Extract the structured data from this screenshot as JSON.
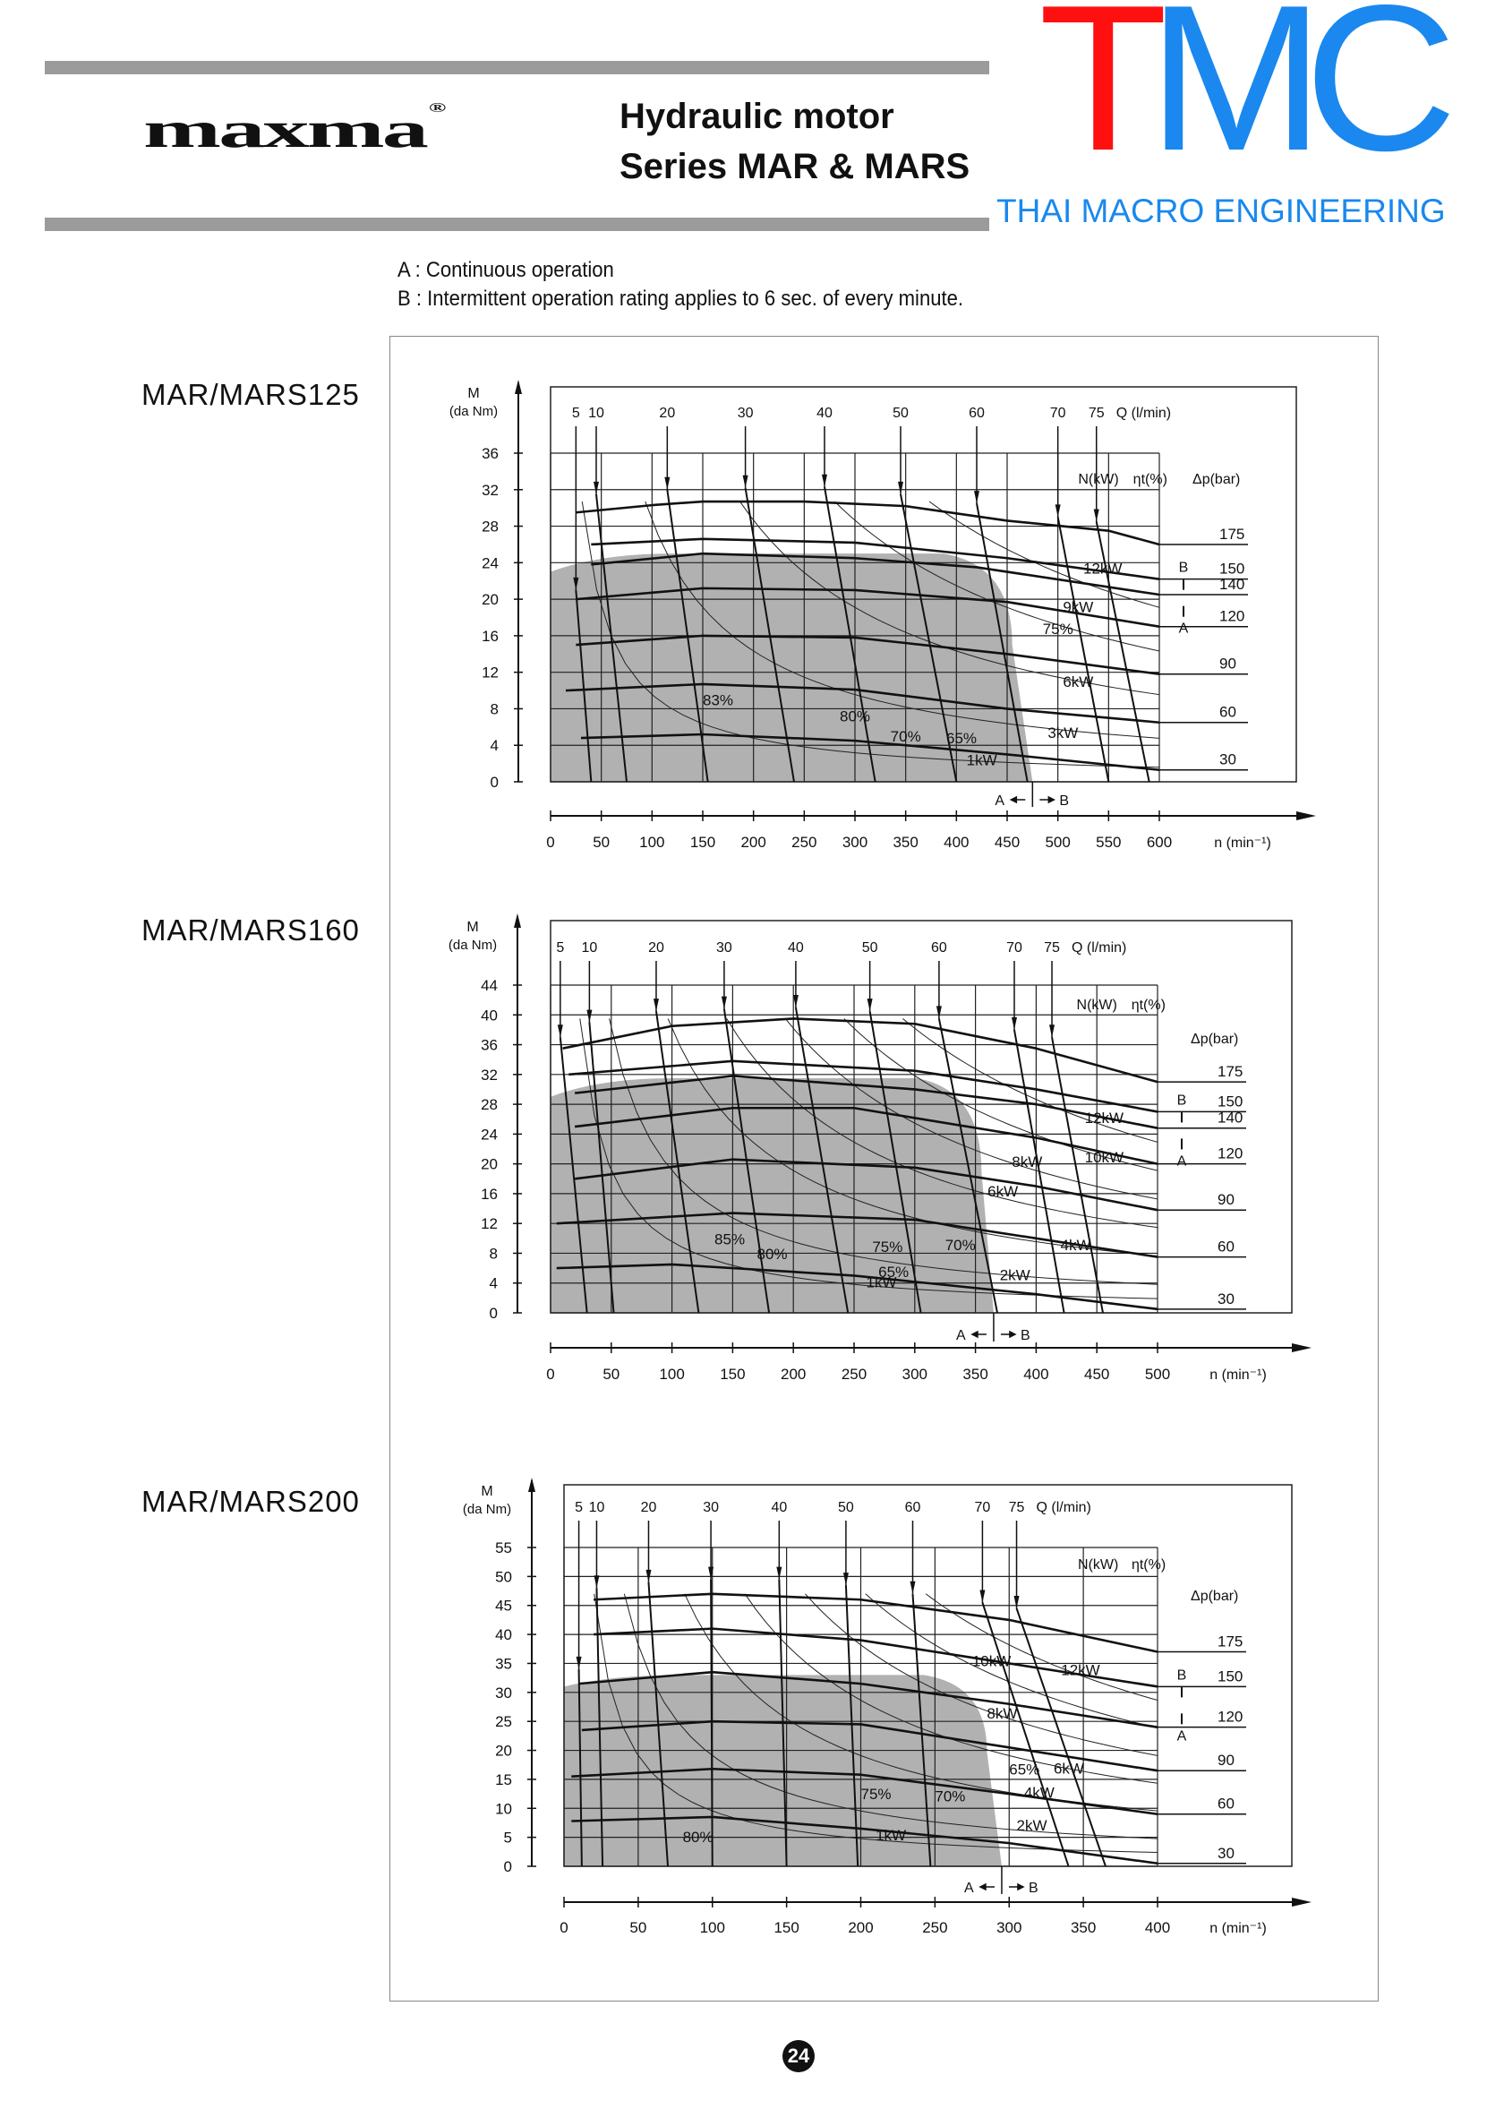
{
  "header": {
    "brand_logo": "maxma",
    "brand_mark": "®",
    "title_line1": "Hydraulic motor",
    "title_line2": "Series MAR & MARS",
    "company_logo_t": "T",
    "company_logo_mc": "MC",
    "company_name": "THAI MACRO ENGINEERING",
    "colors": {
      "red": "#ff1010",
      "blue": "#1a88ee",
      "bar": "#9b9b9b"
    }
  },
  "notes": [
    "A : Continuous operation",
    "B : Intermittent operation rating applies to 6 sec. of every minute."
  ],
  "page_number": "24",
  "chart_data": [
    {
      "type": "line",
      "title": "MAR/MARS125",
      "ylabel": "M",
      "yunit": "(da Nm)",
      "xlabel": "n (min⁻¹)",
      "q_label": "Q (l/min)",
      "power_label": "N(kW)",
      "eff_label": "ηt(%)",
      "dp_label": "Δp(bar)",
      "xlim": [
        0,
        600
      ],
      "ylim": [
        0,
        36
      ],
      "xticks": [
        0,
        50,
        100,
        150,
        200,
        250,
        300,
        350,
        400,
        450,
        500,
        550,
        600
      ],
      "yticks": [
        0,
        4,
        8,
        12,
        16,
        20,
        24,
        28,
        32,
        36
      ],
      "ab_n": 475,
      "a_label": "A",
      "b_label": "B",
      "continuous_region": {
        "left_M": 23,
        "top_M": 25,
        "right_n": 455
      },
      "pressure_curves": [
        {
          "dp": "175",
          "points": [
            [
              25,
              29.5
            ],
            [
              100,
              30.3
            ],
            [
              150,
              30.7
            ],
            [
              250,
              30.7
            ],
            [
              350,
              30.2
            ],
            [
              450,
              28.6
            ],
            [
              550,
              27.5
            ],
            [
              600,
              26
            ]
          ]
        },
        {
          "dp": "150",
          "points": [
            [
              40,
              26
            ],
            [
              150,
              26.6
            ],
            [
              300,
              26.2
            ],
            [
              450,
              24.5
            ],
            [
              600,
              22.2
            ]
          ]
        },
        {
          "dp": "140",
          "points": [
            [
              40,
              23.8
            ],
            [
              150,
              25
            ],
            [
              300,
              24.5
            ],
            [
              420,
              23.5
            ],
            [
              600,
              20.5
            ]
          ]
        },
        {
          "dp": "120",
          "points": [
            [
              25,
              20
            ],
            [
              150,
              21.2
            ],
            [
              300,
              21
            ],
            [
              450,
              19.7
            ],
            [
              600,
              17
            ]
          ]
        },
        {
          "dp": "90",
          "points": [
            [
              25,
              15
            ],
            [
              150,
              16
            ],
            [
              300,
              15.8
            ],
            [
              450,
              14
            ],
            [
              600,
              11.8
            ]
          ]
        },
        {
          "dp": "60",
          "points": [
            [
              15,
              10
            ],
            [
              150,
              10.7
            ],
            [
              300,
              10.1
            ],
            [
              450,
              8
            ],
            [
              600,
              6.5
            ]
          ]
        },
        {
          "dp": "30",
          "points": [
            [
              30,
              4.8
            ],
            [
              150,
              5.2
            ],
            [
              300,
              4.5
            ],
            [
              450,
              3
            ],
            [
              600,
              1.3
            ]
          ]
        }
      ],
      "flow_lines": [
        {
          "q": "5",
          "n_top": 25,
          "m_top": 21,
          "n_bottom": 40
        },
        {
          "q": "10",
          "n_top": 45,
          "m_top": 31.5,
          "n_bottom": 75
        },
        {
          "q": "20",
          "n_top": 115,
          "m_top": 32,
          "n_bottom": 155
        },
        {
          "q": "30",
          "n_top": 192,
          "m_top": 32.2,
          "n_bottom": 240
        },
        {
          "q": "40",
          "n_top": 270,
          "m_top": 32.3,
          "n_bottom": 320
        },
        {
          "q": "50",
          "n_top": 345,
          "m_top": 31.5,
          "n_bottom": 400
        },
        {
          "q": "60",
          "n_top": 420,
          "m_top": 30.5,
          "n_bottom": 470
        },
        {
          "q": "70",
          "n_top": 500,
          "m_top": 29,
          "n_bottom": 550
        },
        {
          "q": "75",
          "n_top": 538,
          "m_top": 28.5,
          "n_bottom": 590
        }
      ],
      "power_kw": [
        1,
        3,
        6,
        9,
        12
      ],
      "annotations": [
        {
          "text": "12kW",
          "n": 525,
          "m": 22.8
        },
        {
          "text": "9kW",
          "n": 505,
          "m": 18.6
        },
        {
          "text": "75%",
          "n": 485,
          "m": 16.2
        },
        {
          "text": "6kW",
          "n": 505,
          "m": 10.4
        },
        {
          "text": "3kW",
          "n": 490,
          "m": 4.8
        },
        {
          "text": "1kW",
          "n": 410,
          "m": 1.8
        },
        {
          "text": "83%",
          "n": 150,
          "m": 8.4
        },
        {
          "text": "80%",
          "n": 285,
          "m": 6.6
        },
        {
          "text": "70%",
          "n": 335,
          "m": 4.4
        },
        {
          "text": "65%",
          "n": 390,
          "m": 4.2
        }
      ]
    },
    {
      "type": "line",
      "title": "MAR/MARS160",
      "ylabel": "M",
      "yunit": "(da Nm)",
      "xlabel": "n (min⁻¹)",
      "q_label": "Q (l/min)",
      "power_label": "N(kW)",
      "eff_label": "ηt(%)",
      "dp_label": "Δp(bar)",
      "xlim": [
        0,
        500
      ],
      "ylim": [
        0,
        44
      ],
      "xticks": [
        0,
        50,
        100,
        150,
        200,
        250,
        300,
        350,
        400,
        450,
        500
      ],
      "yticks": [
        0,
        4,
        8,
        12,
        16,
        20,
        24,
        28,
        32,
        36,
        40,
        44
      ],
      "ab_n": 365,
      "a_label": "A",
      "b_label": "B",
      "continuous_region": {
        "left_M": 29,
        "top_M": 31.5,
        "right_n": 355
      },
      "pressure_curves": [
        {
          "dp": "175",
          "points": [
            [
              10,
              35.5
            ],
            [
              100,
              38.5
            ],
            [
              200,
              39.5
            ],
            [
              300,
              38.8
            ],
            [
              400,
              35.5
            ],
            [
              500,
              31
            ]
          ]
        },
        {
          "dp": "150",
          "points": [
            [
              15,
              32
            ],
            [
              150,
              33.8
            ],
            [
              300,
              32.5
            ],
            [
              400,
              30
            ],
            [
              500,
              27
            ]
          ]
        },
        {
          "dp": "140",
          "points": [
            [
              20,
              29.5
            ],
            [
              150,
              31.8
            ],
            [
              300,
              30
            ],
            [
              400,
              28
            ],
            [
              500,
              24.8
            ]
          ]
        },
        {
          "dp": "120",
          "points": [
            [
              20,
              25
            ],
            [
              150,
              27.5
            ],
            [
              250,
              27.5
            ],
            [
              400,
              23.5
            ],
            [
              500,
              20
            ]
          ]
        },
        {
          "dp": "90",
          "points": [
            [
              20,
              18
            ],
            [
              150,
              20.6
            ],
            [
              300,
              19.5
            ],
            [
              400,
              17
            ],
            [
              500,
              13.8
            ]
          ]
        },
        {
          "dp": "60",
          "points": [
            [
              5,
              12
            ],
            [
              150,
              13.4
            ],
            [
              300,
              12.5
            ],
            [
              400,
              10
            ],
            [
              500,
              7.5
            ]
          ]
        },
        {
          "dp": "30",
          "points": [
            [
              5,
              6
            ],
            [
              100,
              6.5
            ],
            [
              250,
              5
            ],
            [
              400,
              2.5
            ],
            [
              500,
              0.5
            ]
          ]
        }
      ],
      "flow_lines": [
        {
          "q": "5",
          "n_top": 8,
          "m_top": 37,
          "n_bottom": 30
        },
        {
          "q": "10",
          "n_top": 32,
          "m_top": 39,
          "n_bottom": 52
        },
        {
          "q": "20",
          "n_top": 87,
          "m_top": 40.5,
          "n_bottom": 122
        },
        {
          "q": "30",
          "n_top": 143,
          "m_top": 40.8,
          "n_bottom": 180
        },
        {
          "q": "40",
          "n_top": 202,
          "m_top": 41,
          "n_bottom": 245
        },
        {
          "q": "50",
          "n_top": 263,
          "m_top": 40.5,
          "n_bottom": 305
        },
        {
          "q": "60",
          "n_top": 320,
          "m_top": 39.5,
          "n_bottom": 368
        },
        {
          "q": "70",
          "n_top": 382,
          "m_top": 38,
          "n_bottom": 423
        },
        {
          "q": "75",
          "n_top": 413,
          "m_top": 37,
          "n_bottom": 455
        }
      ],
      "power_kw": [
        1,
        2,
        4,
        6,
        8,
        10,
        12
      ],
      "annotations": [
        {
          "text": "12kW",
          "n": 440,
          "m": 25.5
        },
        {
          "text": "10kW",
          "n": 440,
          "m": 20.2
        },
        {
          "text": "8kW",
          "n": 380,
          "m": 19.6
        },
        {
          "text": "6kW",
          "n": 360,
          "m": 15.6
        },
        {
          "text": "4kW",
          "n": 420,
          "m": 8.4
        },
        {
          "text": "2kW",
          "n": 370,
          "m": 4.4
        },
        {
          "text": "1kW",
          "n": 260,
          "m": 3.4
        },
        {
          "text": "85%",
          "n": 135,
          "m": 9.2
        },
        {
          "text": "80%",
          "n": 170,
          "m": 7.2
        },
        {
          "text": "75%",
          "n": 265,
          "m": 8.2
        },
        {
          "text": "70%",
          "n": 325,
          "m": 8.4
        },
        {
          "text": "65%",
          "n": 270,
          "m": 4.8
        }
      ]
    },
    {
      "type": "line",
      "title": "MAR/MARS200",
      "ylabel": "M",
      "yunit": "(da Nm)",
      "xlabel": "n (min⁻¹)",
      "q_label": "Q (l/min)",
      "power_label": "N(kW)",
      "eff_label": "ηt(%)",
      "dp_label": "Δp(bar)",
      "xlim": [
        0,
        400
      ],
      "ylim": [
        0,
        55
      ],
      "xticks": [
        0,
        50,
        100,
        150,
        200,
        250,
        300,
        350,
        400
      ],
      "yticks": [
        0,
        5,
        10,
        15,
        20,
        25,
        30,
        35,
        40,
        45,
        50,
        55
      ],
      "ab_n": 295,
      "a_label": "A",
      "b_label": "B",
      "continuous_region": {
        "left_M": 31,
        "top_M": 33,
        "right_n": 285
      },
      "pressure_curves": [
        {
          "dp": "175",
          "points": [
            [
              20,
              46
            ],
            [
              100,
              47
            ],
            [
              200,
              46
            ],
            [
              300,
              42.5
            ],
            [
              400,
              37
            ]
          ]
        },
        {
          "dp": "150",
          "points": [
            [
              20,
              40
            ],
            [
              100,
              41
            ],
            [
              200,
              39
            ],
            [
              300,
              35
            ],
            [
              400,
              31
            ]
          ]
        },
        {
          "dp": "120",
          "points": [
            [
              10,
              31.5
            ],
            [
              100,
              33.5
            ],
            [
              200,
              31.5
            ],
            [
              300,
              28
            ],
            [
              400,
              24
            ]
          ]
        },
        {
          "dp": "90",
          "points": [
            [
              12,
              23.5
            ],
            [
              100,
              25
            ],
            [
              200,
              24.5
            ],
            [
              300,
              20.5
            ],
            [
              400,
              16.5
            ]
          ]
        },
        {
          "dp": "60",
          "points": [
            [
              5,
              15.5
            ],
            [
              100,
              16.8
            ],
            [
              200,
              15.8
            ],
            [
              300,
              12.5
            ],
            [
              400,
              9
            ]
          ]
        },
        {
          "dp": "30",
          "points": [
            [
              5,
              7.8
            ],
            [
              100,
              8.5
            ],
            [
              200,
              6.5
            ],
            [
              300,
              4
            ],
            [
              400,
              0.5
            ]
          ]
        }
      ],
      "flow_lines": [
        {
          "q": "5",
          "n_top": 10,
          "m_top": 34,
          "n_bottom": 12
        },
        {
          "q": "10",
          "n_top": 22,
          "m_top": 48,
          "n_bottom": 26
        },
        {
          "q": "20",
          "n_top": 57,
          "m_top": 49,
          "n_bottom": 70
        },
        {
          "q": "30",
          "n_top": 99,
          "m_top": 49.5,
          "n_bottom": 100
        },
        {
          "q": "40",
          "n_top": 145,
          "m_top": 49.5,
          "n_bottom": 150
        },
        {
          "q": "50",
          "n_top": 190,
          "m_top": 48.5,
          "n_bottom": 198
        },
        {
          "q": "60",
          "n_top": 235,
          "m_top": 47,
          "n_bottom": 247
        },
        {
          "q": "70",
          "n_top": 282,
          "m_top": 45.5,
          "n_bottom": 340
        },
        {
          "q": "75",
          "n_top": 305,
          "m_top": 44.5,
          "n_bottom": 365
        }
      ],
      "power_kw": [
        1,
        2,
        4,
        6,
        8,
        10,
        12
      ],
      "annotations": [
        {
          "text": "10kW",
          "n": 275,
          "m": 34.5
        },
        {
          "text": "12kW",
          "n": 335,
          "m": 33
        },
        {
          "text": "8kW",
          "n": 285,
          "m": 25.5
        },
        {
          "text": "65%",
          "n": 300,
          "m": 15.8
        },
        {
          "text": "6kW",
          "n": 330,
          "m": 16
        },
        {
          "text": "4kW",
          "n": 310,
          "m": 11.8
        },
        {
          "text": "2kW",
          "n": 305,
          "m": 6.2
        },
        {
          "text": "1kW",
          "n": 210,
          "m": 4.5
        },
        {
          "text": "80%",
          "n": 80,
          "m": 4.2
        },
        {
          "text": "75%",
          "n": 200,
          "m": 11.6
        },
        {
          "text": "70%",
          "n": 250,
          "m": 11.2
        }
      ]
    }
  ]
}
